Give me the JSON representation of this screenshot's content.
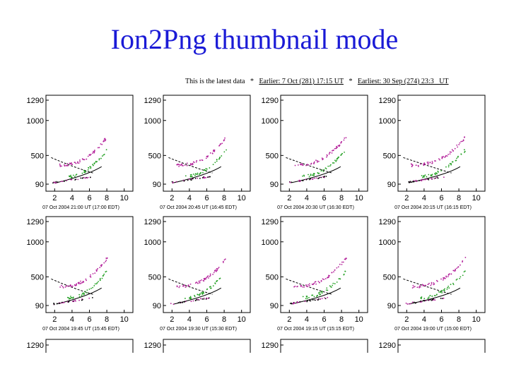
{
  "slide": {
    "title": "Ion2Png thumbnail mode"
  },
  "nav": {
    "intro": "This is the latest data",
    "sep": "*",
    "earlier_link": "Earlier: 7 Oct (281) 17:15 UT",
    "earliest_link": "Earliest: 30 Sep (274) 23:3_ UT"
  },
  "axis": {
    "y_ticks": [
      "1290",
      "1000",
      "500",
      "90"
    ],
    "x_ticks": [
      "2",
      "4",
      "6",
      "8",
      "10"
    ]
  },
  "colors": {
    "title": "#1a1ad6",
    "frame": "#000000",
    "trace_magenta": "#b3209a",
    "trace_green": "#23a023",
    "trace_black": "#000000"
  },
  "thumbnails": [
    {
      "caption": "07 Oct 2004 21:00 UT (17:00 EDT)"
    },
    {
      "caption": "07 Oct 2004 20:45 UT (16:45 EDT)"
    },
    {
      "caption": "07 Oct 2004 20:30 UT (16:30 EDT)"
    },
    {
      "caption": "07 Oct 2004 20:15 UT (16:15 EDT)"
    },
    {
      "caption": "07 Oct 2004 19:45 UT (15:45 EDT)"
    },
    {
      "caption": "07 Oct 2004 19:30 UT (15:30 EDT)"
    },
    {
      "caption": "07 Oct 2004 19:15 UT (15:15 EDT)"
    },
    {
      "caption": "07 Oct 2004 19:00 UT (15:00 EDT)"
    }
  ],
  "partial_row": {
    "y_tick": "1290"
  }
}
